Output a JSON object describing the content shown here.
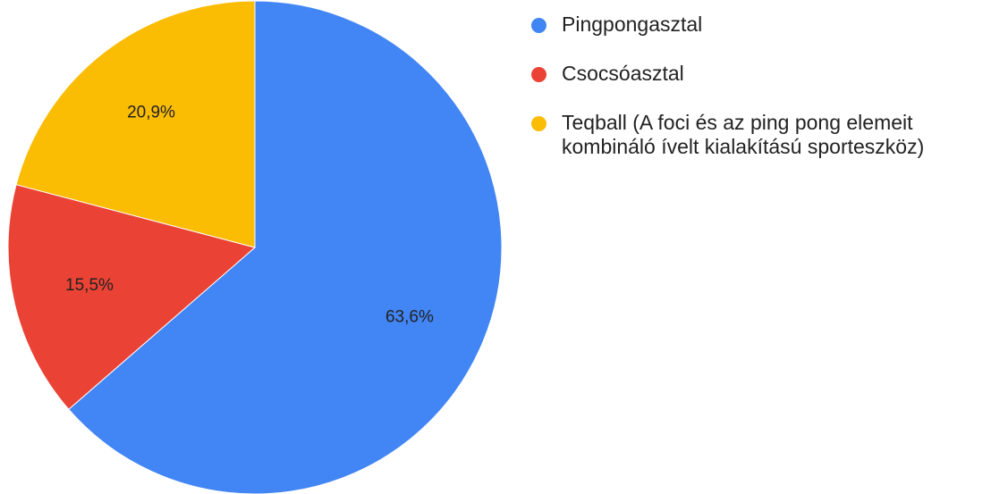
{
  "chart_data": {
    "type": "pie",
    "categories": [
      "Pingpongasztal",
      "Csocsóasztal",
      "Teqball (A foci és az ping pong elemeit kombináló ívelt kialakítású sporteszköz)"
    ],
    "values": [
      63.6,
      15.5,
      20.9
    ],
    "value_labels": [
      "63,6%",
      "15,5%",
      "20,9%"
    ],
    "colors": [
      "#4285f4",
      "#ea4335",
      "#fbbc04"
    ]
  }
}
